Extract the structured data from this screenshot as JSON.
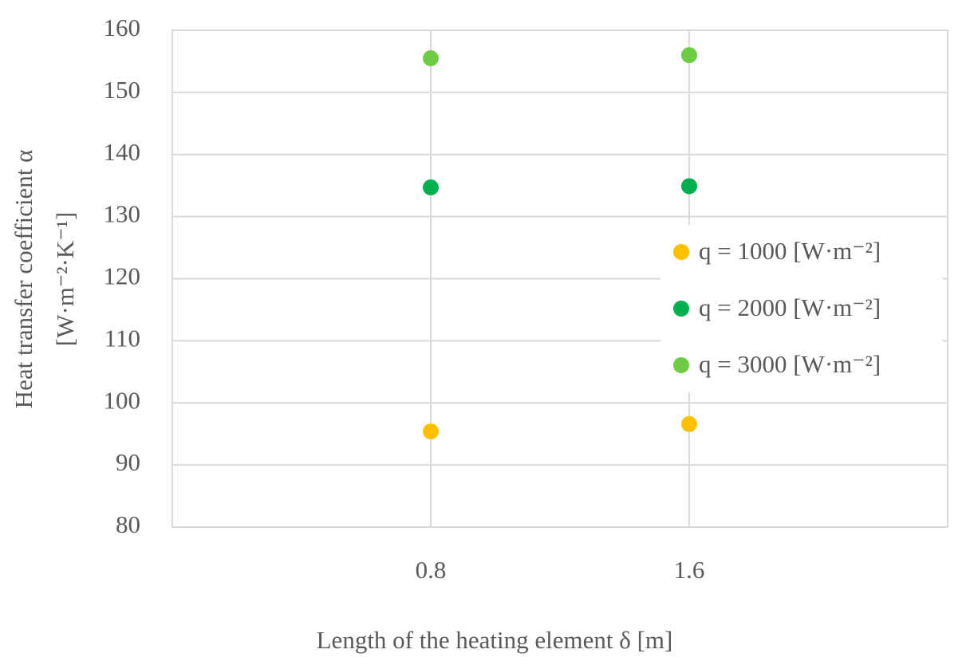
{
  "chart_data": {
    "type": "scatter",
    "ylabel": [
      "Heat transfer coefficient α",
      "[W·m⁻²·K⁻¹]"
    ],
    "xlabel": "Length of the heating element δ [m]",
    "x": [
      0.8,
      1.6
    ],
    "series": [
      {
        "name": "q = 1000 [W·m⁻²]",
        "color": "#ffc000",
        "values": [
          95.4,
          96.6
        ]
      },
      {
        "name": "q = 2000 [W·m⁻²]",
        "color": "#00b050",
        "values": [
          134.7,
          134.9
        ]
      },
      {
        "name": "q = 3000 [W·m⁻²]",
        "color": "#6fcb45",
        "values": [
          155.5,
          156.0
        ]
      }
    ],
    "xlim": [
      0,
      2.4
    ],
    "xticks": [
      0.8,
      1.6
    ],
    "ylim": [
      80,
      160
    ],
    "yticks": [
      80,
      90,
      100,
      110,
      120,
      130,
      140,
      150,
      160
    ],
    "grid": true,
    "legend": "right"
  }
}
